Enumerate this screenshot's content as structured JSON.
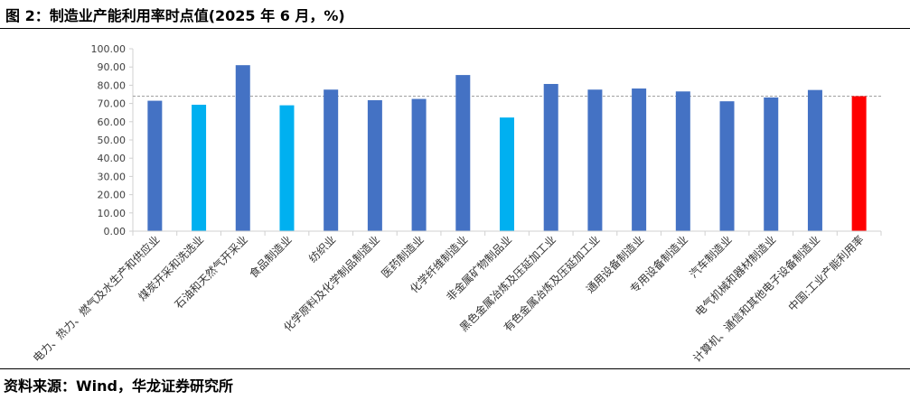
{
  "figure_title": "图 2：制造业产能利用率时点值(2025 年 6 月，%)",
  "source_text": "资料来源：Wind，华龙证券研究所",
  "chart_data": {
    "type": "bar",
    "title": "",
    "xlabel": "",
    "ylabel": "",
    "ylim": [
      0,
      100
    ],
    "ytick_step": 10,
    "ytick_labels": [
      "0.00",
      "10.00",
      "20.00",
      "30.00",
      "40.00",
      "50.00",
      "60.00",
      "70.00",
      "80.00",
      "90.00",
      "100.00"
    ],
    "categories": [
      "电力、热力、燃气及水生产和供应业",
      "煤炭开采和洗选业",
      "石油和天然气开采业",
      "食品制造业",
      "纺织业",
      "化学原料及化学制品制造业",
      "医药制造业",
      "化学纤维制造业",
      "非金属矿物制品业",
      "黑色金属冶炼及压延加工业",
      "有色金属冶炼及压延加工业",
      "通用设备制造业",
      "专用设备制造业",
      "汽车制造业",
      "电气机械和器材制造业",
      "计算机、通信和其他电子设备制造业",
      "中国:工业产能利用率"
    ],
    "values": [
      71.5,
      69.3,
      91.0,
      69.0,
      77.6,
      71.8,
      72.5,
      85.6,
      62.3,
      80.7,
      77.6,
      78.2,
      76.6,
      71.2,
      73.3,
      77.4,
      74.0
    ],
    "bar_colors": [
      "#4472C4",
      "#00B0F0",
      "#4472C4",
      "#00B0F0",
      "#4472C4",
      "#4472C4",
      "#4472C4",
      "#4472C4",
      "#00B0F0",
      "#4472C4",
      "#4472C4",
      "#4472C4",
      "#4472C4",
      "#4472C4",
      "#4472C4",
      "#4472C4",
      "#FF0000"
    ],
    "reference_line": {
      "value": 74.0,
      "style": "dashed",
      "color": "#A0A0A0"
    },
    "grid": false,
    "legend": "none"
  }
}
